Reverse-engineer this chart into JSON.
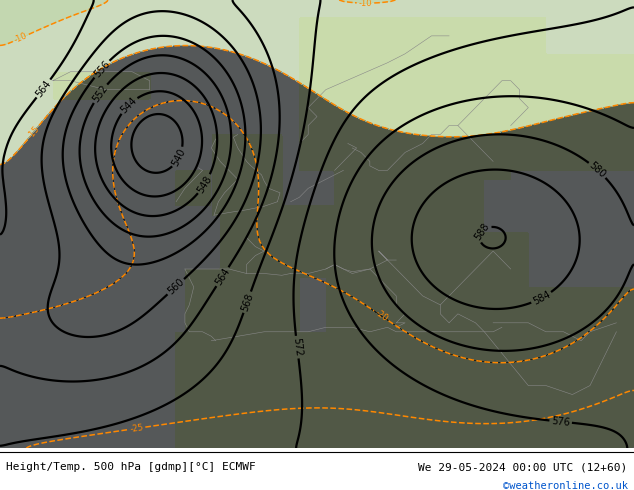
{
  "title_left": "Height/Temp. 500 hPa [gdmp][°C] ECMWF",
  "title_right": "We 29-05-2024 00:00 UTC (12+60)",
  "credit": "©weatheronline.co.uk",
  "fig_width": 6.34,
  "fig_height": 4.9,
  "dpi": 100,
  "land_color": "#ccddb0",
  "sea_color": "#d4dde0",
  "z500_color": "#000000",
  "temp_neg_color": "#ff8800",
  "temp_pos_color": "#00bbbb",
  "temp_zero_color": "#88cc00",
  "text_color": "#000000",
  "credit_color": "#0055cc"
}
